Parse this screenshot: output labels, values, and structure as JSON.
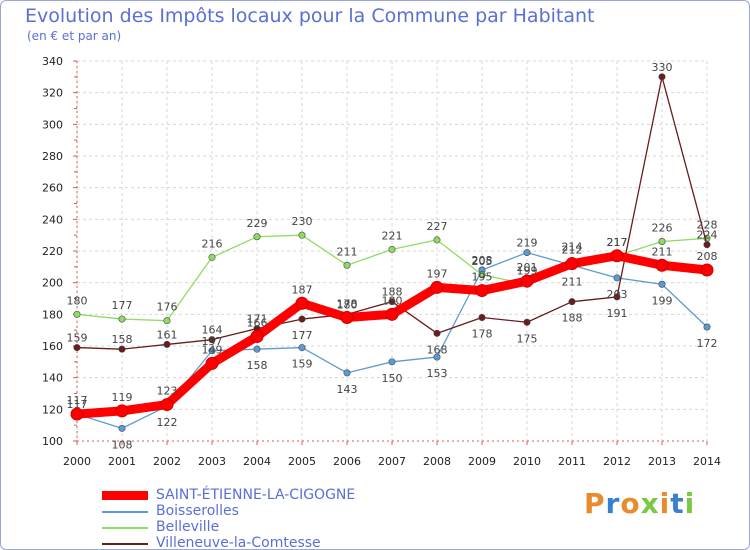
{
  "header": {
    "title": "Evolution des Impôts locaux pour la Commune par Habitant",
    "subtitle": "(en € et par an)"
  },
  "brand": {
    "text": "Proxiti"
  },
  "colors": {
    "background": "#ffffff",
    "grid": "#d7d7d7",
    "axis_text": "#222222",
    "title": "#5a6fd6",
    "frame": "#9aa6d6",
    "saint_etienne": "#ff0000",
    "boisserolles": "#5b9bd5",
    "belleville": "#8fdc63",
    "villeneuve": "#6b1c1c"
  },
  "chart_data": {
    "type": "line",
    "title": "Evolution des Impôts locaux pour la Commune par Habitant",
    "subtitle": "(en € et par an)",
    "xlabel": "",
    "ylabel": "",
    "x": [
      "2000",
      "2001",
      "2002",
      "2003",
      "2004",
      "2005",
      "2006",
      "2007",
      "2008",
      "2009",
      "2010",
      "2011",
      "2012",
      "2013",
      "2014"
    ],
    "ylim": [
      100,
      340
    ],
    "yticks": [
      100,
      120,
      140,
      160,
      180,
      200,
      220,
      240,
      260,
      280,
      300,
      320,
      340
    ],
    "grid": true,
    "series": [
      {
        "name": "SAINT-ÉTIENNE-LA-CIGOGNE",
        "color": "#ff0000",
        "emphasis": true,
        "values": [
          117,
          119,
          123,
          149,
          166,
          187,
          178,
          180,
          197,
          195,
          201,
          212,
          217,
          211,
          208
        ]
      },
      {
        "name": "Boisserolles",
        "color": "#5b9bd5",
        "emphasis": false,
        "values": [
          117,
          108,
          122,
          157,
          158,
          159,
          143,
          150,
          153,
          208,
          219,
          211,
          203,
          199,
          172
        ]
      },
      {
        "name": "Belleville",
        "color": "#8fdc63",
        "emphasis": false,
        "values": [
          180,
          177,
          176,
          216,
          229,
          230,
          211,
          221,
          227,
          205,
          199,
          214,
          217,
          226,
          228
        ]
      },
      {
        "name": "Villeneuve-la-Comtesse",
        "color": "#6b1c1c",
        "emphasis": false,
        "values": [
          159,
          158,
          161,
          164,
          171,
          177,
          180,
          188,
          168,
          178,
          175,
          188,
          191,
          330,
          224
        ]
      }
    ]
  }
}
